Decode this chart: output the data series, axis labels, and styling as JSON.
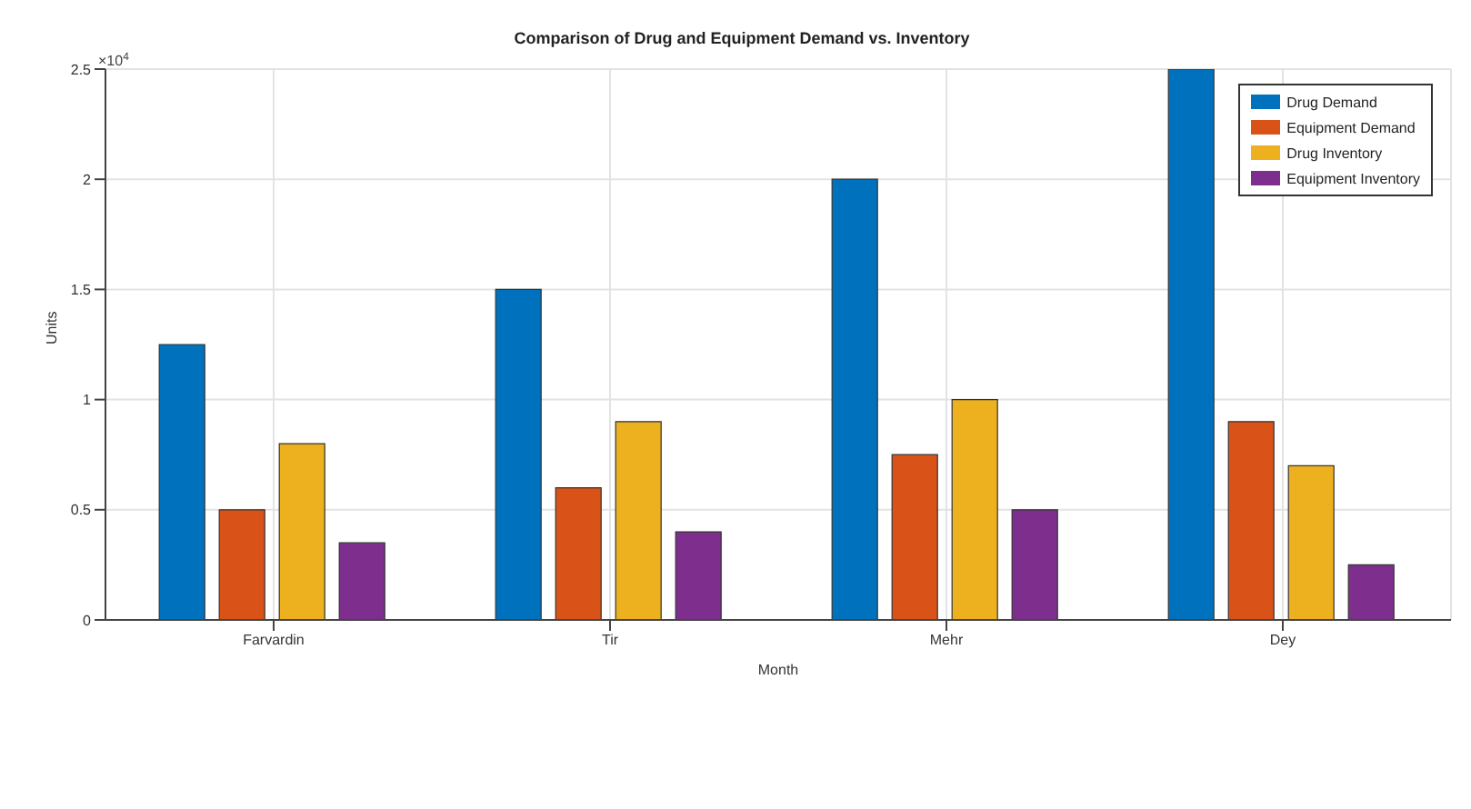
{
  "chart_data": {
    "type": "bar",
    "title": "Comparison of Drug and Equipment Demand vs. Inventory",
    "xlabel": "Month",
    "ylabel": "Units",
    "categories": [
      "Farvardin",
      "Tir",
      "Mehr",
      "Dey"
    ],
    "series": [
      {
        "name": "Drug Demand",
        "color": "#0072bd",
        "values": [
          1.25,
          1.5,
          2,
          2.5
        ]
      },
      {
        "name": "Equipment Demand",
        "color": "#d95319",
        "values": [
          0.5,
          0.6,
          0.75,
          0.9
        ]
      },
      {
        "name": "Drug Inventory",
        "color": "#edb120",
        "values": [
          0.8,
          0.9,
          1,
          0.7
        ]
      },
      {
        "name": "Equipment Inventory",
        "color": "#7e2f8e",
        "values": [
          0.35,
          0.4,
          0.5,
          0.25
        ]
      }
    ],
    "ylim": [
      0,
      2.5
    ],
    "yticks": [
      0,
      0.5,
      1,
      1.5,
      2,
      2.5
    ],
    "annotations": [
      "×10$^{4}$"
    ],
    "grid": true,
    "legend": "top right"
  }
}
